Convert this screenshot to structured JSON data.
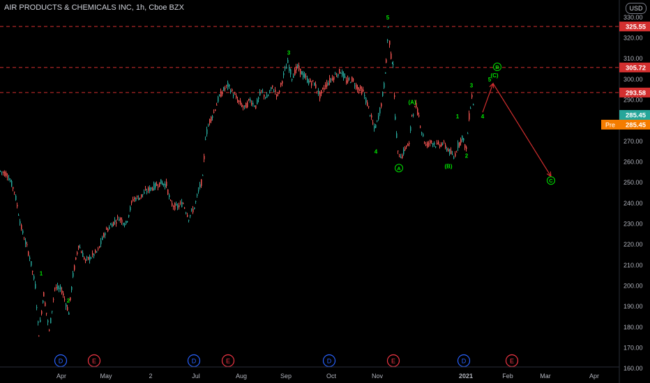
{
  "header": {
    "title": "AIR PRODUCTS & CHEMICALS INC, 1h, Cboe BZX",
    "currency": "USD"
  },
  "colors": {
    "background": "#000000",
    "up": "#26a69a",
    "down": "#ef5350",
    "wave_label": "#00e600",
    "level_line": "#d32f2f",
    "projection": "#d32f2f",
    "axis_text": "#b2b5be",
    "price_tag_last": "#26a69a",
    "price_tag_pre": "#f57c00"
  },
  "chart_data": {
    "type": "line",
    "series": [
      {
        "values": [
          [
            0,
            255.5
          ],
          [
            10,
            254
          ],
          [
            20,
            246
          ],
          [
            30,
            228
          ],
          [
            42,
            214
          ],
          [
            50,
            200
          ],
          [
            55,
            177
          ],
          [
            62,
            196
          ],
          [
            70,
            178
          ],
          [
            78,
            199
          ],
          [
            88,
            198
          ],
          [
            98,
            187
          ],
          [
            104,
            205
          ],
          [
            112,
            220
          ],
          [
            122,
            212
          ],
          [
            130,
            214
          ],
          [
            140,
            217
          ],
          [
            150,
            226
          ],
          [
            160,
            230
          ],
          [
            170,
            233
          ],
          [
            180,
            230
          ],
          [
            190,
            242
          ],
          [
            200,
            243
          ],
          [
            210,
            246
          ],
          [
            220,
            248
          ],
          [
            230,
            250
          ],
          [
            238,
            249
          ],
          [
            244,
            240
          ],
          [
            252,
            238
          ],
          [
            262,
            240
          ],
          [
            270,
            233
          ],
          [
            278,
            238
          ],
          [
            286,
            248
          ],
          [
            290,
            252
          ],
          [
            294,
            272
          ],
          [
            300,
            280
          ],
          [
            306,
            284
          ],
          [
            312,
            290
          ],
          [
            318,
            294
          ],
          [
            326,
            297
          ],
          [
            334,
            293
          ],
          [
            342,
            289
          ],
          [
            350,
            286
          ],
          [
            358,
            290
          ],
          [
            366,
            287
          ],
          [
            374,
            294
          ],
          [
            382,
            291
          ],
          [
            390,
            296
          ],
          [
            398,
            292
          ],
          [
            406,
            302
          ],
          [
            412,
            308
          ],
          [
            418,
            301
          ],
          [
            426,
            306
          ],
          [
            434,
            302
          ],
          [
            442,
            299
          ],
          [
            450,
            298
          ],
          [
            458,
            292
          ],
          [
            466,
            297
          ],
          [
            474,
            300
          ],
          [
            480,
            302
          ],
          [
            488,
            304
          ],
          [
            496,
            299
          ],
          [
            504,
            300
          ],
          [
            512,
            296
          ],
          [
            520,
            294
          ],
          [
            528,
            286
          ],
          [
            536,
            276
          ],
          [
            540,
            279
          ],
          [
            546,
            288
          ],
          [
            550,
            297
          ],
          [
            553,
            308
          ],
          [
            556,
            325
          ],
          [
            560,
            311
          ],
          [
            563,
            308
          ],
          [
            566,
            282
          ],
          [
            570,
            264
          ],
          [
            576,
            263
          ],
          [
            582,
            268
          ],
          [
            586,
            268
          ],
          [
            590,
            283
          ],
          [
            596,
            287
          ],
          [
            600,
            282
          ],
          [
            604,
            275
          ],
          [
            610,
            268
          ],
          [
            618,
            270
          ],
          [
            626,
            268
          ],
          [
            634,
            269
          ],
          [
            642,
            266
          ],
          [
            650,
            262
          ],
          [
            656,
            268
          ],
          [
            662,
            272
          ],
          [
            668,
            266
          ],
          [
            672,
            282
          ],
          [
            676,
            292
          ],
          [
            680,
            284
          ]
        ]
      }
    ],
    "ylim": [
      155,
      335
    ],
    "y_ticks": [
      "330.00",
      "320.00",
      "310.00",
      "300.00",
      "290.00",
      "280.00",
      "270.00",
      "260.00",
      "250.00",
      "240.00",
      "230.00",
      "220.00",
      "210.00",
      "200.00",
      "190.00",
      "180.00",
      "170.00",
      "160.00"
    ],
    "x_ticks": [
      "Apr",
      "May",
      "2",
      "Jul",
      "Aug",
      "Sep",
      "Oct",
      "Nov",
      "2021",
      "Feb",
      "Mar",
      "Apr"
    ],
    "price_levels": [
      "325.55",
      "305.72",
      "293.58"
    ],
    "price_tags": [
      {
        "label": "",
        "value": "285.45"
      },
      {
        "label": "Pre",
        "value": "285.45"
      }
    ],
    "wave_labels": [
      {
        "text": "1",
        "circled": false,
        "x": 59,
        "y": 206
      },
      {
        "text": "2",
        "circled": false,
        "x": 98,
        "y": 193
      },
      {
        "text": "3",
        "circled": false,
        "x": 414,
        "y": 313
      },
      {
        "text": "4",
        "circled": false,
        "x": 539,
        "y": 265
      },
      {
        "text": "5",
        "circled": false,
        "x": 556,
        "y": 330
      },
      {
        "text": "A",
        "circled": true,
        "x": 572,
        "y": 257
      },
      {
        "text": "(A)",
        "circled": false,
        "x": 591,
        "y": 289
      },
      {
        "text": "(B)",
        "circled": false,
        "x": 643,
        "y": 258
      },
      {
        "text": "1",
        "circled": false,
        "x": 656,
        "y": 282
      },
      {
        "text": "2",
        "circled": false,
        "x": 669,
        "y": 263
      },
      {
        "text": "3",
        "circled": false,
        "x": 676,
        "y": 297
      },
      {
        "text": "4",
        "circled": false,
        "x": 692,
        "y": 282
      },
      {
        "text": "5",
        "circled": false,
        "x": 702,
        "y": 300
      },
      {
        "text": "(C)",
        "circled": false,
        "x": 709,
        "y": 302
      },
      {
        "text": "B",
        "circled": true,
        "x": 713,
        "y": 306
      },
      {
        "text": "C",
        "circled": true,
        "x": 790,
        "y": 251
      }
    ],
    "projection": [
      [
        692,
        284
      ],
      [
        707,
        298
      ],
      [
        790,
        253
      ]
    ],
    "events": [
      {
        "text": "D",
        "kind": "dividend",
        "x": 87
      },
      {
        "text": "E",
        "kind": "earnings",
        "x": 135
      },
      {
        "text": "D",
        "kind": "dividend",
        "x": 278
      },
      {
        "text": "E",
        "kind": "earnings",
        "x": 327
      },
      {
        "text": "D",
        "kind": "dividend",
        "x": 472
      },
      {
        "text": "E",
        "kind": "earnings",
        "x": 564
      },
      {
        "text": "D",
        "kind": "dividend",
        "x": 665
      },
      {
        "text": "E",
        "kind": "earnings",
        "x": 734
      }
    ]
  }
}
